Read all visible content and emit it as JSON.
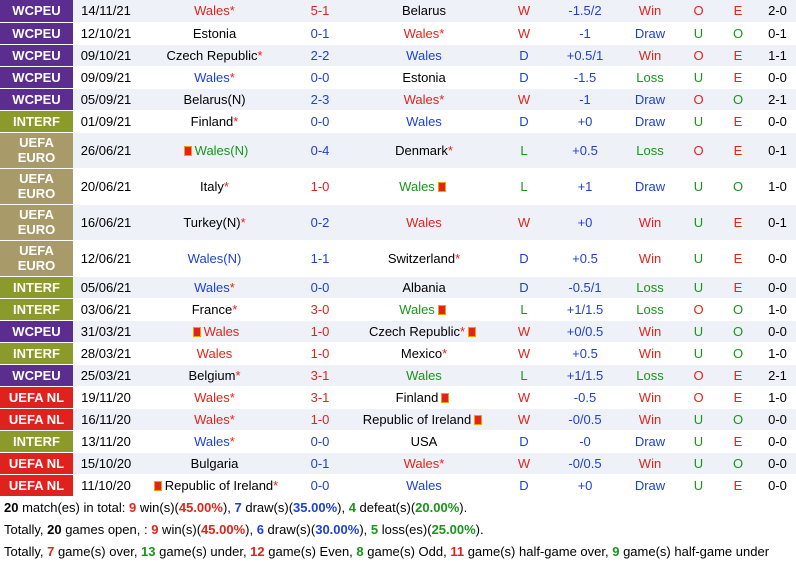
{
  "colors": {
    "WCPEU": "#5b2d8e",
    "INTERF": "#8a9a2b",
    "UEFA EURO": "#a99a6a",
    "UEFA NL": "#e0221f",
    "win_red": "#e2231a",
    "draw_blue": "#1e3fd8",
    "loss_green": "#17961a"
  },
  "rows": [
    {
      "comp": "WCPEU",
      "date": "14/11/21",
      "home": "Wales",
      "home_star": true,
      "home_flag": false,
      "home_color": "red",
      "score": "5-1",
      "score_color": "red",
      "away": "Belarus",
      "away_star": false,
      "away_flag": false,
      "away_color": "black",
      "wdl": "W",
      "wdl_color": "red",
      "hcp": "-1.5/2",
      "hcp_color": "blue",
      "hres": "Win",
      "hres_color": "red",
      "ou1": "O",
      "ou1_color": "red",
      "oe": "E",
      "oe_color": "red",
      "ht": "2-0",
      "ou2": "O",
      "ou2_color": "red",
      "tall": false
    },
    {
      "comp": "WCPEU",
      "date": "12/10/21",
      "home": "Estonia",
      "home_star": false,
      "home_flag": false,
      "home_color": "black",
      "score": "0-1",
      "score_color": "blue",
      "away": "Wales",
      "away_star": true,
      "away_flag": false,
      "away_color": "red",
      "wdl": "W",
      "wdl_color": "red",
      "hcp": "-1",
      "hcp_color": "blue",
      "hres": "Draw",
      "hres_color": "blue",
      "ou1": "U",
      "ou1_color": "green",
      "oe": "O",
      "oe_color": "green",
      "ht": "0-1",
      "ou2": "O",
      "ou2_color": "red",
      "tall": false
    },
    {
      "comp": "WCPEU",
      "date": "09/10/21",
      "home": "Czech Republic",
      "home_star": true,
      "home_flag": false,
      "home_color": "black",
      "score": "2-2",
      "score_color": "blue",
      "away": "Wales",
      "away_star": false,
      "away_flag": false,
      "away_color": "blue",
      "wdl": "D",
      "wdl_color": "blue",
      "hcp": "+0.5/1",
      "hcp_color": "blue",
      "hres": "Win",
      "hres_color": "red",
      "ou1": "O",
      "ou1_color": "red",
      "oe": "E",
      "oe_color": "red",
      "ht": "1-1",
      "ou2": "O",
      "ou2_color": "red",
      "tall": false
    },
    {
      "comp": "WCPEU",
      "date": "09/09/21",
      "home": "Wales",
      "home_star": true,
      "home_flag": false,
      "home_color": "blue",
      "score": "0-0",
      "score_color": "blue",
      "away": "Estonia",
      "away_star": false,
      "away_flag": false,
      "away_color": "black",
      "wdl": "D",
      "wdl_color": "blue",
      "hcp": "-1.5",
      "hcp_color": "blue",
      "hres": "Loss",
      "hres_color": "green",
      "ou1": "U",
      "ou1_color": "green",
      "oe": "E",
      "oe_color": "red",
      "ht": "0-0",
      "ou2": "U",
      "ou2_color": "green",
      "tall": false
    },
    {
      "comp": "WCPEU",
      "date": "05/09/21",
      "home": "Belarus(N)",
      "home_star": false,
      "home_flag": false,
      "home_color": "black",
      "score": "2-3",
      "score_color": "blue",
      "away": "Wales",
      "away_star": true,
      "away_flag": false,
      "away_color": "red",
      "wdl": "W",
      "wdl_color": "red",
      "hcp": "-1",
      "hcp_color": "blue",
      "hres": "Draw",
      "hres_color": "blue",
      "ou1": "O",
      "ou1_color": "red",
      "oe": "O",
      "oe_color": "green",
      "ht": "2-1",
      "ou2": "O",
      "ou2_color": "red",
      "tall": false
    },
    {
      "comp": "INTERF",
      "date": "01/09/21",
      "home": "Finland",
      "home_star": true,
      "home_flag": false,
      "home_color": "black",
      "score": "0-0",
      "score_color": "blue",
      "away": "Wales",
      "away_star": false,
      "away_flag": false,
      "away_color": "blue",
      "wdl": "D",
      "wdl_color": "blue",
      "hcp": "+0",
      "hcp_color": "blue",
      "hres": "Draw",
      "hres_color": "blue",
      "ou1": "U",
      "ou1_color": "green",
      "oe": "E",
      "oe_color": "red",
      "ht": "0-0",
      "ou2": "U",
      "ou2_color": "green",
      "tall": false
    },
    {
      "comp": "UEFA EURO",
      "date": "26/06/21",
      "home": "Wales(N)",
      "home_star": false,
      "home_flag": true,
      "home_color": "green",
      "score": "0-4",
      "score_color": "blue",
      "away": "Denmark",
      "away_star": true,
      "away_flag": false,
      "away_color": "black",
      "wdl": "L",
      "wdl_color": "green",
      "hcp": "+0.5",
      "hcp_color": "blue",
      "hres": "Loss",
      "hres_color": "green",
      "ou1": "O",
      "ou1_color": "red",
      "oe": "E",
      "oe_color": "red",
      "ht": "0-1",
      "ou2": "O",
      "ou2_color": "red",
      "tall": true
    },
    {
      "comp": "UEFA EURO",
      "date": "20/06/21",
      "home": "Italy",
      "home_star": true,
      "home_flag": false,
      "home_color": "black",
      "score": "1-0",
      "score_color": "red",
      "away": "Wales",
      "away_star": false,
      "away_flag": true,
      "away_color": "green",
      "wdl": "L",
      "wdl_color": "green",
      "hcp": "+1",
      "hcp_color": "blue",
      "hres": "Draw",
      "hres_color": "blue",
      "ou1": "U",
      "ou1_color": "green",
      "oe": "O",
      "oe_color": "green",
      "ht": "1-0",
      "ou2": "O",
      "ou2_color": "red",
      "tall": true
    },
    {
      "comp": "UEFA EURO",
      "date": "16/06/21",
      "home": "Turkey(N)",
      "home_star": true,
      "home_flag": false,
      "home_color": "black",
      "score": "0-2",
      "score_color": "blue",
      "away": "Wales",
      "away_star": false,
      "away_flag": false,
      "away_color": "red",
      "wdl": "W",
      "wdl_color": "red",
      "hcp": "+0",
      "hcp_color": "blue",
      "hres": "Win",
      "hres_color": "red",
      "ou1": "U",
      "ou1_color": "green",
      "oe": "E",
      "oe_color": "red",
      "ht": "0-1",
      "ou2": "O",
      "ou2_color": "red",
      "tall": true
    },
    {
      "comp": "UEFA EURO",
      "date": "12/06/21",
      "home": "Wales(N)",
      "home_star": false,
      "home_flag": false,
      "home_color": "blue",
      "score": "1-1",
      "score_color": "blue",
      "away": "Switzerland",
      "away_star": true,
      "away_flag": false,
      "away_color": "black",
      "wdl": "D",
      "wdl_color": "blue",
      "hcp": "+0.5",
      "hcp_color": "blue",
      "hres": "Win",
      "hres_color": "red",
      "ou1": "U",
      "ou1_color": "green",
      "oe": "E",
      "oe_color": "red",
      "ht": "0-0",
      "ou2": "U",
      "ou2_color": "green",
      "tall": true
    },
    {
      "comp": "INTERF",
      "date": "05/06/21",
      "home": "Wales",
      "home_star": true,
      "home_flag": false,
      "home_color": "blue",
      "score": "0-0",
      "score_color": "blue",
      "away": "Albania",
      "away_star": false,
      "away_flag": false,
      "away_color": "black",
      "wdl": "D",
      "wdl_color": "blue",
      "hcp": "-0.5/1",
      "hcp_color": "blue",
      "hres": "Loss",
      "hres_color": "green",
      "ou1": "U",
      "ou1_color": "green",
      "oe": "E",
      "oe_color": "red",
      "ht": "0-0",
      "ou2": "U",
      "ou2_color": "green",
      "tall": false
    },
    {
      "comp": "INTERF",
      "date": "03/06/21",
      "home": "France",
      "home_star": true,
      "home_flag": false,
      "home_color": "black",
      "score": "3-0",
      "score_color": "red",
      "away": "Wales",
      "away_star": false,
      "away_flag": true,
      "away_color": "green",
      "wdl": "L",
      "wdl_color": "green",
      "hcp": "+1/1.5",
      "hcp_color": "blue",
      "hres": "Loss",
      "hres_color": "green",
      "ou1": "O",
      "ou1_color": "red",
      "oe": "O",
      "oe_color": "green",
      "ht": "1-0",
      "ou2": "O",
      "ou2_color": "red",
      "tall": false
    },
    {
      "comp": "WCPEU",
      "date": "31/03/21",
      "home": "Wales",
      "home_star": false,
      "home_flag": true,
      "home_color": "red",
      "score": "1-0",
      "score_color": "red",
      "away": "Czech Republic",
      "away_star": true,
      "away_flag": true,
      "away_color": "black",
      "wdl": "W",
      "wdl_color": "red",
      "hcp": "+0/0.5",
      "hcp_color": "blue",
      "hres": "Win",
      "hres_color": "red",
      "ou1": "U",
      "ou1_color": "green",
      "oe": "O",
      "oe_color": "green",
      "ht": "0-0",
      "ou2": "U",
      "ou2_color": "green",
      "tall": false
    },
    {
      "comp": "INTERF",
      "date": "28/03/21",
      "home": "Wales",
      "home_star": false,
      "home_flag": false,
      "home_color": "red",
      "score": "1-0",
      "score_color": "red",
      "away": "Mexico",
      "away_star": true,
      "away_flag": false,
      "away_color": "black",
      "wdl": "W",
      "wdl_color": "red",
      "hcp": "+0.5",
      "hcp_color": "blue",
      "hres": "Win",
      "hres_color": "red",
      "ou1": "U",
      "ou1_color": "green",
      "oe": "O",
      "oe_color": "green",
      "ht": "1-0",
      "ou2": "O",
      "ou2_color": "red",
      "tall": false
    },
    {
      "comp": "WCPEU",
      "date": "25/03/21",
      "home": "Belgium",
      "home_star": true,
      "home_flag": false,
      "home_color": "black",
      "score": "3-1",
      "score_color": "red",
      "away": "Wales",
      "away_star": false,
      "away_flag": false,
      "away_color": "green",
      "wdl": "L",
      "wdl_color": "green",
      "hcp": "+1/1.5",
      "hcp_color": "blue",
      "hres": "Loss",
      "hres_color": "green",
      "ou1": "O",
      "ou1_color": "red",
      "oe": "E",
      "oe_color": "red",
      "ht": "2-1",
      "ou2": "O",
      "ou2_color": "red",
      "tall": false
    },
    {
      "comp": "UEFA NL",
      "date": "19/11/20",
      "home": "Wales",
      "home_star": true,
      "home_flag": false,
      "home_color": "red",
      "score": "3-1",
      "score_color": "red",
      "away": "Finland",
      "away_star": false,
      "away_flag": true,
      "away_color": "black",
      "wdl": "W",
      "wdl_color": "red",
      "hcp": "-0.5",
      "hcp_color": "blue",
      "hres": "Win",
      "hres_color": "red",
      "ou1": "O",
      "ou1_color": "red",
      "oe": "E",
      "oe_color": "red",
      "ht": "1-0",
      "ou2": "O",
      "ou2_color": "red",
      "tall": false
    },
    {
      "comp": "UEFA NL",
      "date": "16/11/20",
      "home": "Wales",
      "home_star": true,
      "home_flag": false,
      "home_color": "red",
      "score": "1-0",
      "score_color": "red",
      "away": "Republic of Ireland",
      "away_star": false,
      "away_flag": true,
      "away_color": "black",
      "wdl": "W",
      "wdl_color": "red",
      "hcp": "-0/0.5",
      "hcp_color": "blue",
      "hres": "Win",
      "hres_color": "red",
      "ou1": "U",
      "ou1_color": "green",
      "oe": "O",
      "oe_color": "green",
      "ht": "0-0",
      "ou2": "U",
      "ou2_color": "green",
      "tall": false
    },
    {
      "comp": "INTERF",
      "date": "13/11/20",
      "home": "Wales",
      "home_star": true,
      "home_flag": false,
      "home_color": "blue",
      "score": "0-0",
      "score_color": "blue",
      "away": "USA",
      "away_star": false,
      "away_flag": false,
      "away_color": "black",
      "wdl": "D",
      "wdl_color": "blue",
      "hcp": "-0",
      "hcp_color": "blue",
      "hres": "Draw",
      "hres_color": "blue",
      "ou1": "U",
      "ou1_color": "green",
      "oe": "E",
      "oe_color": "red",
      "ht": "0-0",
      "ou2": "U",
      "ou2_color": "green",
      "tall": false
    },
    {
      "comp": "UEFA NL",
      "date": "15/10/20",
      "home": "Bulgaria",
      "home_star": false,
      "home_flag": false,
      "home_color": "black",
      "score": "0-1",
      "score_color": "blue",
      "away": "Wales",
      "away_star": true,
      "away_flag": false,
      "away_color": "red",
      "wdl": "W",
      "wdl_color": "red",
      "hcp": "-0/0.5",
      "hcp_color": "blue",
      "hres": "Win",
      "hres_color": "red",
      "ou1": "U",
      "ou1_color": "green",
      "oe": "O",
      "oe_color": "green",
      "ht": "0-0",
      "ou2": "U",
      "ou2_color": "green",
      "tall": false
    },
    {
      "comp": "UEFA NL",
      "date": "11/10/20",
      "home": "Republic of Ireland",
      "home_star": true,
      "home_flag": true,
      "home_color": "black",
      "score": "0-0",
      "score_color": "blue",
      "away": "Wales",
      "away_star": false,
      "away_flag": false,
      "away_color": "blue",
      "wdl": "D",
      "wdl_color": "blue",
      "hcp": "+0",
      "hcp_color": "blue",
      "hres": "Draw",
      "hres_color": "blue",
      "ou1": "U",
      "ou1_color": "green",
      "oe": "E",
      "oe_color": "red",
      "ht": "0-0",
      "ou2": "U",
      "ou2_color": "green",
      "tall": false
    }
  ],
  "summary": {
    "line1": [
      {
        "t": "20",
        "b": true
      },
      {
        "t": " match(es) in total: "
      },
      {
        "t": "9",
        "b": true,
        "c": "red"
      },
      {
        "t": " win(s)("
      },
      {
        "t": "45.00%",
        "b": true,
        "c": "red"
      },
      {
        "t": "), "
      },
      {
        "t": "7",
        "b": true,
        "c": "blue"
      },
      {
        "t": " draw(s)("
      },
      {
        "t": "35.00%",
        "b": true,
        "c": "blue"
      },
      {
        "t": "), "
      },
      {
        "t": "4",
        "b": true,
        "c": "green"
      },
      {
        "t": " defeat(s)("
      },
      {
        "t": "20.00%",
        "b": true,
        "c": "green"
      },
      {
        "t": ")."
      }
    ],
    "line2": [
      {
        "t": "Totally, "
      },
      {
        "t": "20",
        "b": true
      },
      {
        "t": " games open, : "
      },
      {
        "t": "9",
        "b": true,
        "c": "red"
      },
      {
        "t": " win(s)("
      },
      {
        "t": "45.00%",
        "b": true,
        "c": "red"
      },
      {
        "t": "), "
      },
      {
        "t": "6",
        "b": true,
        "c": "blue"
      },
      {
        "t": " draw(s)("
      },
      {
        "t": "30.00%",
        "b": true,
        "c": "blue"
      },
      {
        "t": "), "
      },
      {
        "t": "5",
        "b": true,
        "c": "green"
      },
      {
        "t": " loss(es)("
      },
      {
        "t": "25.00%",
        "b": true,
        "c": "green"
      },
      {
        "t": ")."
      }
    ],
    "line3": [
      {
        "t": "Totally, "
      },
      {
        "t": "7",
        "b": true,
        "c": "red"
      },
      {
        "t": " game(s) over, "
      },
      {
        "t": "13",
        "b": true,
        "c": "green"
      },
      {
        "t": " game(s) under, "
      },
      {
        "t": "12",
        "b": true,
        "c": "red"
      },
      {
        "t": " game(s) Even, "
      },
      {
        "t": "8",
        "b": true,
        "c": "green"
      },
      {
        "t": " game(s) Odd, "
      },
      {
        "t": "11",
        "b": true,
        "c": "red"
      },
      {
        "t": " game(s) half-game over, "
      },
      {
        "t": "9",
        "b": true,
        "c": "green"
      },
      {
        "t": " game(s) half-game under"
      }
    ]
  }
}
